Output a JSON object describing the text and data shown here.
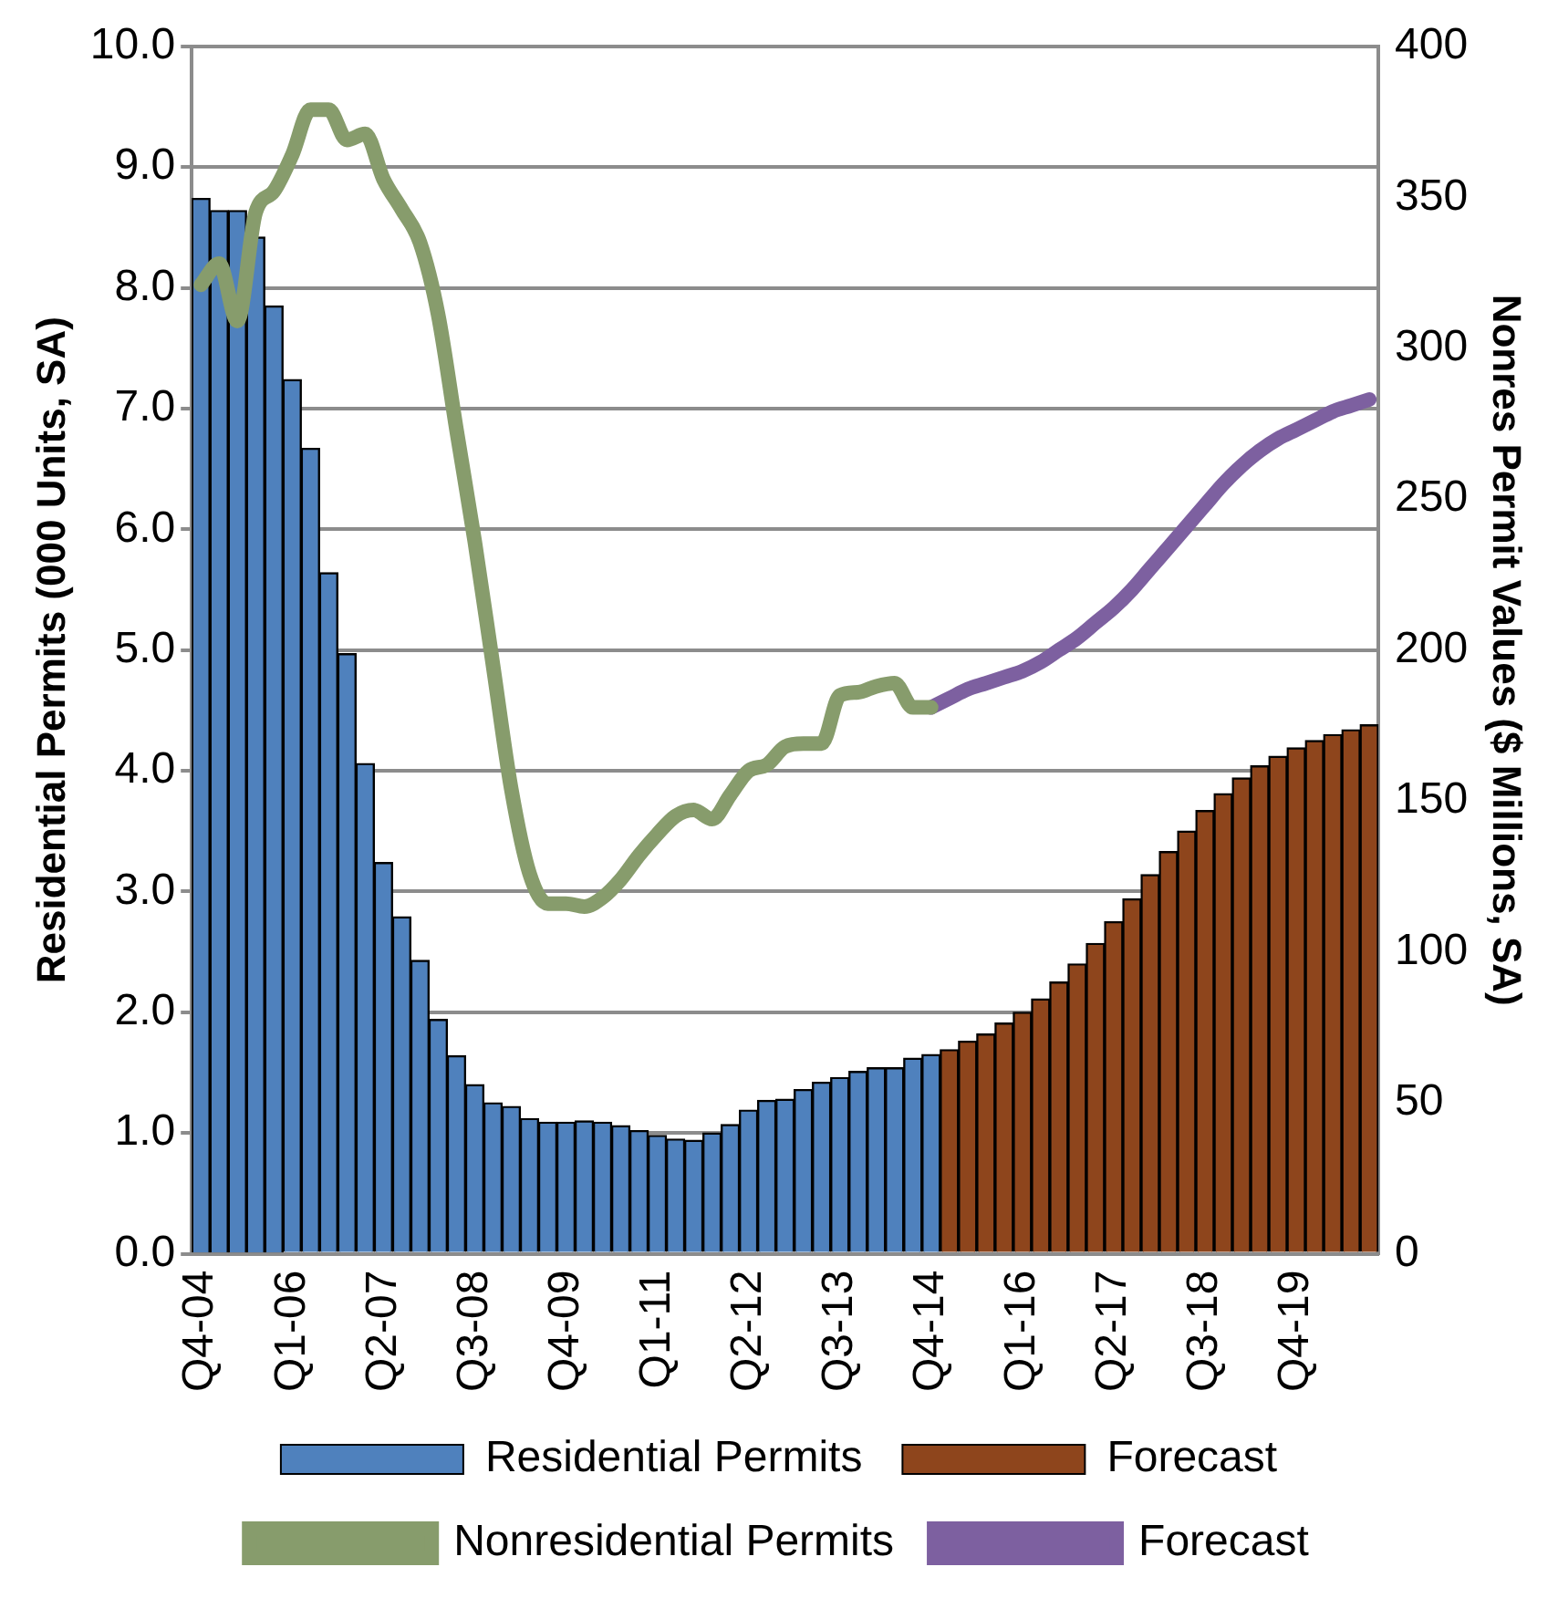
{
  "chart_data": {
    "type": "bar",
    "categories": [
      "Q4-04",
      null,
      null,
      null,
      null,
      "Q1-06",
      null,
      null,
      null,
      null,
      "Q2-07",
      null,
      null,
      null,
      null,
      "Q3-08",
      null,
      null,
      null,
      null,
      "Q4-09",
      null,
      null,
      null,
      null,
      "Q1-11",
      null,
      null,
      null,
      null,
      "Q2-12",
      null,
      null,
      null,
      null,
      "Q3-13",
      null,
      null,
      null,
      null,
      "Q4-14",
      null,
      null,
      null,
      null,
      "Q1-16",
      null,
      null,
      null,
      null,
      "Q2-17",
      null,
      null,
      null,
      null,
      "Q3-18",
      null,
      null,
      null,
      null,
      "Q4-19",
      null,
      null,
      null,
      null
    ],
    "series": [
      {
        "name": "Residential Permits",
        "color": "#4f81bd",
        "values": [
          8.74,
          8.64,
          8.64,
          8.42,
          7.85,
          7.24,
          6.67,
          5.64,
          4.97,
          4.06,
          3.24,
          2.79,
          2.43,
          1.94,
          1.64,
          1.4,
          1.25,
          1.22,
          1.12,
          1.09,
          1.09,
          1.1,
          1.09,
          1.06,
          1.02,
          0.98,
          0.95,
          0.94,
          1.0,
          1.07,
          1.19,
          1.27,
          1.28,
          1.36,
          1.42,
          1.46,
          1.51,
          1.54,
          1.54,
          1.62,
          1.65,
          null,
          null,
          null,
          null,
          null,
          null,
          null,
          null,
          null,
          null,
          null,
          null,
          null,
          null,
          null,
          null,
          null,
          null,
          null,
          null,
          null,
          null,
          null,
          null
        ]
      },
      {
        "name": "Forecast",
        "color": "#8e451c",
        "values": [
          null,
          null,
          null,
          null,
          null,
          null,
          null,
          null,
          null,
          null,
          null,
          null,
          null,
          null,
          null,
          null,
          null,
          null,
          null,
          null,
          null,
          null,
          null,
          null,
          null,
          null,
          null,
          null,
          null,
          null,
          null,
          null,
          null,
          null,
          null,
          null,
          null,
          null,
          null,
          null,
          null,
          1.69,
          1.76,
          1.82,
          1.91,
          2.0,
          2.11,
          2.25,
          2.4,
          2.57,
          2.75,
          2.94,
          3.14,
          3.33,
          3.5,
          3.67,
          3.81,
          3.94,
          4.04,
          4.12,
          4.19,
          4.25,
          4.3,
          4.34,
          4.38
        ]
      },
      {
        "name": "Nonresidential Permits",
        "type": "line",
        "axis": "y2",
        "color": "#879c6c",
        "values": [
          321,
          328,
          309,
          345,
          352,
          364,
          379,
          379,
          369,
          371,
          356,
          346,
          335,
          311,
          273,
          236,
          195,
          154,
          126,
          116,
          116,
          115,
          118,
          124,
          132,
          139,
          145,
          147,
          144,
          152,
          160,
          162,
          168,
          169,
          169,
          185,
          186,
          188,
          189,
          181,
          181,
          null,
          null,
          null,
          null,
          null,
          null,
          null,
          null,
          null,
          null,
          null,
          null,
          null,
          null,
          null,
          null,
          null,
          null,
          null,
          null,
          null,
          null,
          null,
          null
        ]
      },
      {
        "name": "Forecast",
        "type": "line",
        "axis": "y2",
        "color": "#7d60a0",
        "values": [
          null,
          null,
          null,
          null,
          null,
          null,
          null,
          null,
          null,
          null,
          null,
          null,
          null,
          null,
          null,
          null,
          null,
          null,
          null,
          null,
          null,
          null,
          null,
          null,
          null,
          null,
          null,
          null,
          null,
          null,
          null,
          null,
          null,
          null,
          null,
          null,
          null,
          null,
          null,
          null,
          181,
          184,
          187,
          189,
          191,
          193,
          196,
          200,
          204,
          209,
          214,
          220,
          227,
          234,
          241,
          248,
          255,
          261,
          266,
          270,
          273,
          276,
          279,
          281,
          283
        ]
      }
    ],
    "ylabel": "Residential Permits (000 Units, SA)",
    "y2label": "Nonres Permit Values ($ Millions, SA)",
    "ylim": [
      0,
      10
    ],
    "yticks": [
      {
        "value": 0,
        "label": "0.0"
      },
      {
        "value": 1,
        "label": "1.0"
      },
      {
        "value": 2,
        "label": "2.0"
      },
      {
        "value": 3,
        "label": "3.0"
      },
      {
        "value": 4,
        "label": "4.0"
      },
      {
        "value": 5,
        "label": "5.0"
      },
      {
        "value": 6,
        "label": "6.0"
      },
      {
        "value": 7,
        "label": "7.0"
      },
      {
        "value": 8,
        "label": "8.0"
      },
      {
        "value": 9,
        "label": "9.0"
      },
      {
        "value": 10,
        "label": "10.0"
      }
    ],
    "y2lim": [
      0,
      400
    ],
    "y2ticks": [
      0,
      50,
      100,
      150,
      200,
      250,
      300,
      350,
      400
    ],
    "grid": "y",
    "legend": "bottom",
    "marker": "none",
    "line_style": "solid"
  }
}
